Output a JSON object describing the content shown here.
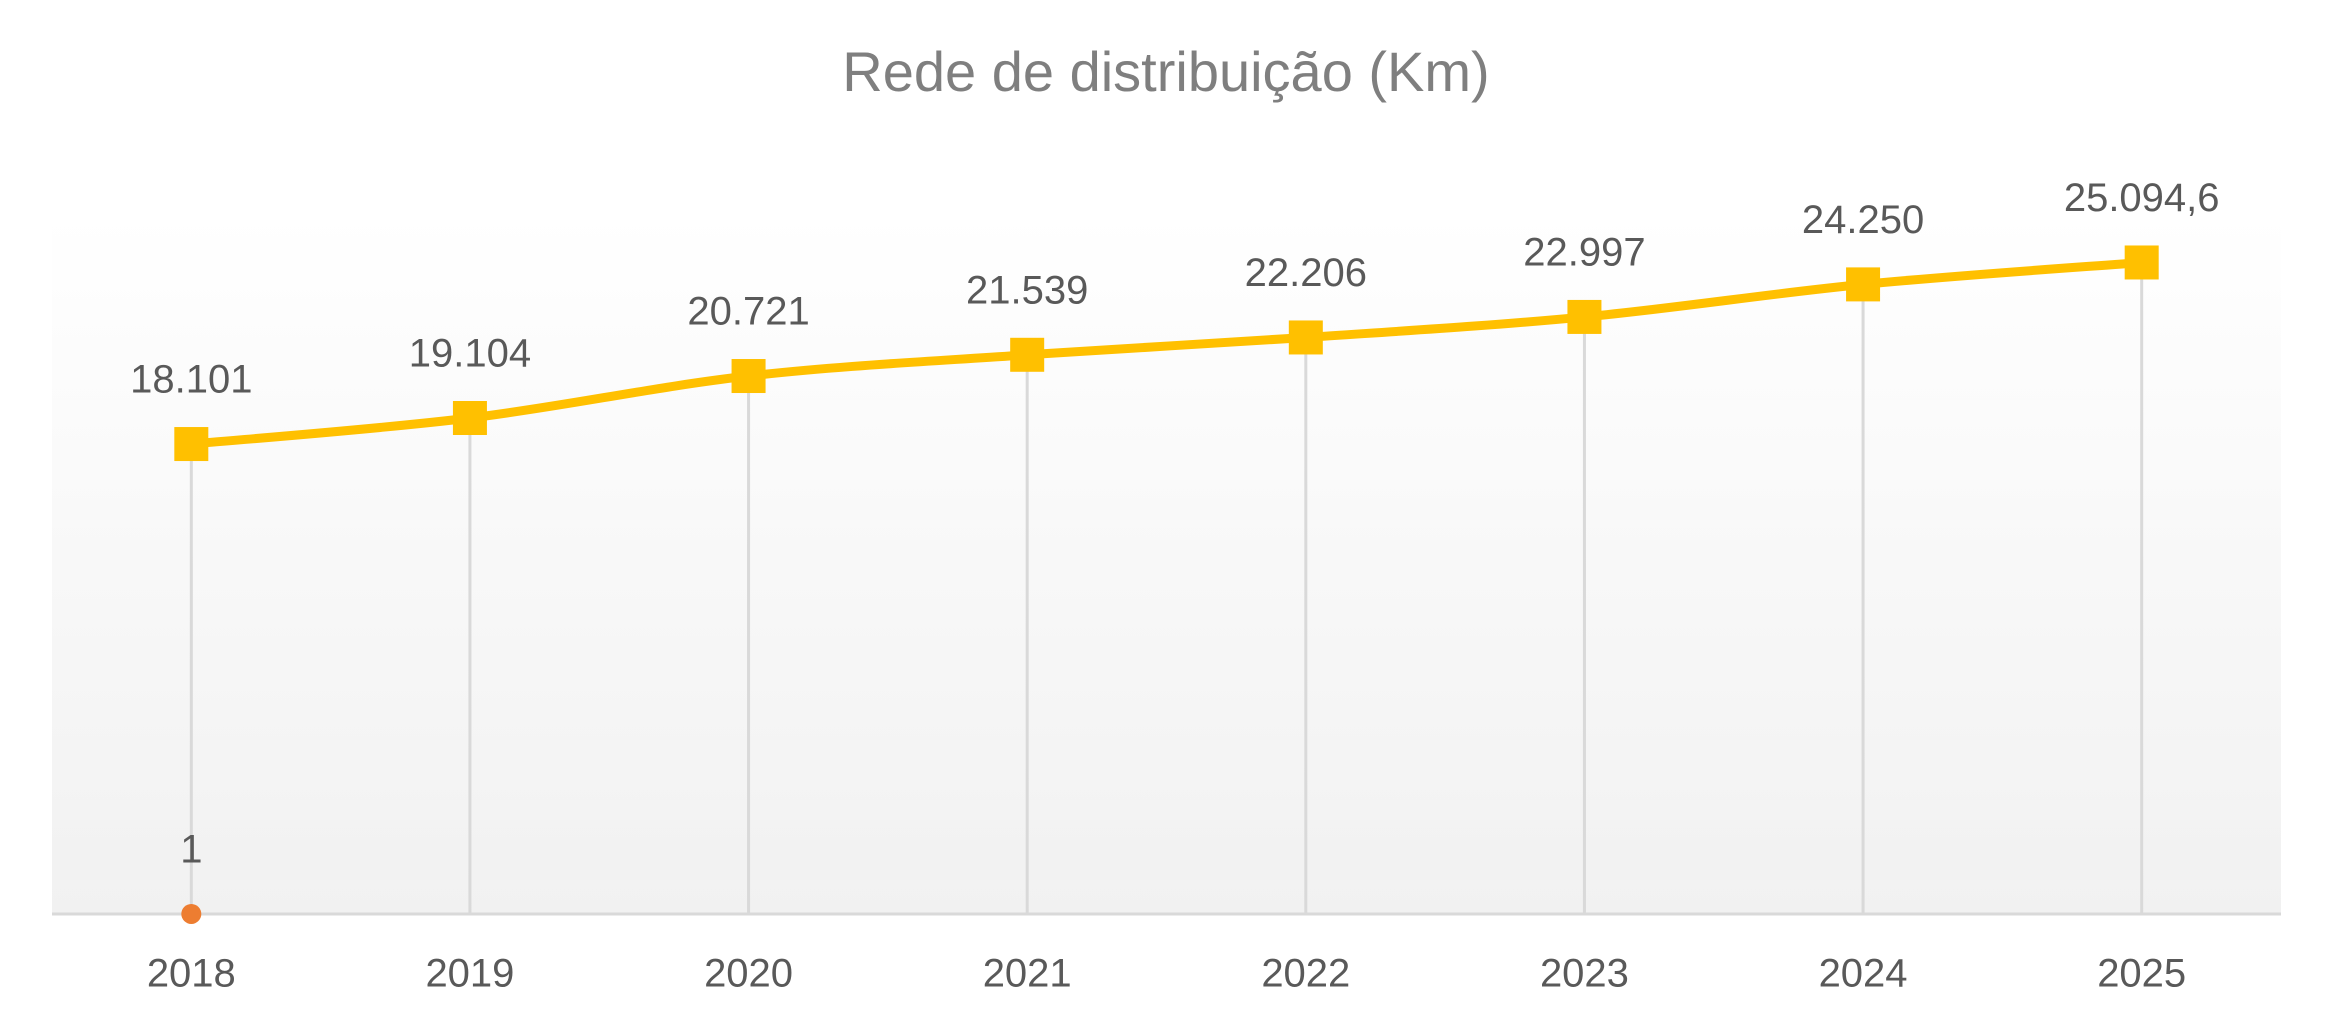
{
  "chart_data": {
    "type": "line",
    "title": "Rede de distribuição (Km)",
    "categories": [
      "2018",
      "2019",
      "2020",
      "2021",
      "2022",
      "2023",
      "2024",
      "2025"
    ],
    "series": [
      {
        "color": "#FFC000",
        "marker": "square",
        "values": [
          18101,
          19104,
          20721,
          21539,
          22206,
          22997,
          24250,
          25094.6
        ],
        "value_labels": [
          "18.101",
          "19.104",
          "20.721",
          "21.539",
          "22.206",
          "22.997",
          "24.250",
          "25.094,6"
        ]
      },
      {
        "color": "#ED7D31",
        "marker": "circle",
        "values": [
          1,
          null,
          null,
          null,
          null,
          null,
          null,
          null
        ]
      }
    ],
    "ylim": [
      0,
      27000
    ],
    "drop_lines": true,
    "smooth": true
  }
}
